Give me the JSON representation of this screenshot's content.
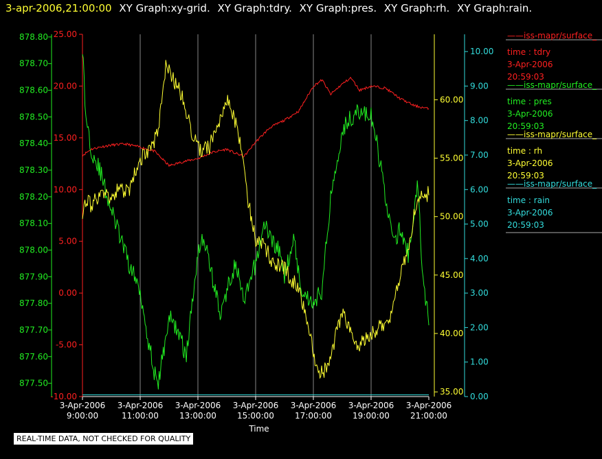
{
  "header": {
    "timestamp": "3-apr-2006,21:00:00",
    "titles": [
      "XY Graph:xy-grid.",
      "XY Graph:tdry.",
      "XY Graph:pres.",
      "XY Graph:rh.",
      "XY Graph:rain."
    ]
  },
  "footer": {
    "note": "REAL-TIME DATA, NOT CHECKED FOR QUALITY"
  },
  "colors": {
    "tdry": "#ff2020",
    "pres": "#22ee22",
    "rh": "#ffff33",
    "rain": "#33dddd",
    "grid": "#888888",
    "background": "#000000"
  },
  "chart_data": {
    "type": "line",
    "xlabel": "Time",
    "x_ticks": [
      {
        "date": "3-Apr-2006",
        "time": "9:00:00"
      },
      {
        "date": "3-Apr-2006",
        "time": "11:00:00"
      },
      {
        "date": "3-Apr-2006",
        "time": "13:00:00"
      },
      {
        "date": "3-Apr-2006",
        "time": "15:00:00"
      },
      {
        "date": "3-Apr-2006",
        "time": "17:00:00"
      },
      {
        "date": "3-Apr-2006",
        "time": "19:00:00"
      },
      {
        "date": "3-Apr-2006",
        "time": "21:00:00"
      }
    ],
    "x_range_hours": [
      9,
      21
    ],
    "grid": true,
    "legend_position": "right",
    "axes": {
      "pres": {
        "side": "left-outer",
        "range": [
          877.45,
          878.81
        ],
        "ticks": [
          "878.80",
          "878.70",
          "878.60",
          "878.50",
          "878.40",
          "878.30",
          "878.20",
          "878.10",
          "878.00",
          "877.90",
          "877.80",
          "877.70",
          "877.60",
          "877.50"
        ]
      },
      "tdry": {
        "side": "left-inner",
        "range": [
          -10,
          25
        ],
        "ticks": [
          "25.00",
          "20.00",
          "15.00",
          "10.00",
          "5.00",
          "0.00",
          "-5.00",
          "-10.00"
        ]
      },
      "rh": {
        "side": "right-inner",
        "range": [
          34.6,
          65.6
        ],
        "ticks": [
          "60.00",
          "55.00",
          "50.00",
          "45.00",
          "40.00",
          "35.00"
        ]
      },
      "rain": {
        "side": "right-outer",
        "range": [
          0,
          10.5
        ],
        "ticks": [
          "10.00",
          "9.00",
          "8.00",
          "7.00",
          "6.00",
          "5.00",
          "4.00",
          "3.00",
          "2.00",
          "1.00",
          "0.00"
        ]
      }
    },
    "series": [
      {
        "name": "tdry",
        "legend_source": "iss-mapr/surface_",
        "legend_line1": "time : tdry",
        "legend_date": "3-Apr-2006",
        "legend_time": "20:59:03",
        "x": [
          9.0,
          9.3,
          9.6,
          10.0,
          10.5,
          11.0,
          11.5,
          12.0,
          12.5,
          13.0,
          13.5,
          14.0,
          14.3,
          14.6,
          15.0,
          15.5,
          16.0,
          16.5,
          17.0,
          17.3,
          17.6,
          18.0,
          18.3,
          18.6,
          19.0,
          19.5,
          20.0,
          20.5,
          21.0
        ],
        "values": [
          13.3,
          13.9,
          14.1,
          14.3,
          14.4,
          14.1,
          13.7,
          12.3,
          12.7,
          13.0,
          13.6,
          13.9,
          13.5,
          13.2,
          14.6,
          16.0,
          16.7,
          17.6,
          20.0,
          20.6,
          19.2,
          20.2,
          20.8,
          19.6,
          20.0,
          19.8,
          18.8,
          18.1,
          17.8
        ]
      },
      {
        "name": "pres",
        "legend_source": "iss-mapr/surface_",
        "legend_line1": "time : pres",
        "legend_date": "3-Apr-2006",
        "legend_time": "20:59:03",
        "x": [
          9.0,
          9.1,
          9.3,
          9.6,
          10.0,
          10.3,
          10.6,
          11.0,
          11.3,
          11.6,
          12.0,
          12.3,
          12.6,
          13.0,
          13.2,
          13.5,
          13.8,
          14.0,
          14.3,
          14.6,
          15.0,
          15.3,
          15.5,
          15.8,
          16.0,
          16.3,
          16.6,
          17.0,
          17.3,
          17.6,
          18.0,
          18.3,
          18.6,
          19.0,
          19.2,
          19.5,
          19.8,
          20.0,
          20.3,
          20.6,
          20.8,
          21.0
        ],
        "values": [
          878.77,
          878.52,
          878.38,
          878.3,
          878.15,
          878.05,
          877.95,
          877.85,
          877.65,
          877.48,
          877.75,
          877.7,
          877.6,
          878.0,
          878.05,
          877.9,
          877.75,
          877.85,
          877.95,
          877.8,
          877.95,
          878.1,
          878.05,
          878.0,
          877.9,
          878.05,
          877.85,
          877.8,
          877.85,
          878.2,
          878.45,
          878.5,
          878.52,
          878.5,
          878.4,
          878.2,
          878.02,
          878.08,
          877.98,
          878.25,
          877.9,
          877.72
        ]
      },
      {
        "name": "rh",
        "legend_source": "iss-mapr/surface_",
        "legend_line1": "time : rh",
        "legend_date": "3-Apr-2006",
        "legend_time": "20:59:03",
        "x": [
          9.0,
          9.1,
          9.3,
          9.6,
          10.0,
          10.3,
          10.6,
          11.0,
          11.3,
          11.6,
          11.9,
          12.2,
          12.5,
          12.7,
          12.9,
          13.1,
          13.4,
          13.7,
          14.0,
          14.2,
          14.5,
          14.7,
          15.0,
          15.3,
          15.6,
          16.0,
          16.3,
          16.6,
          17.0,
          17.2,
          17.5,
          17.8,
          18.0,
          18.3,
          18.6,
          19.0,
          19.3,
          19.6,
          20.0,
          20.3,
          20.6,
          21.0
        ],
        "values": [
          50.5,
          51.5,
          51.0,
          52.0,
          51.5,
          52.5,
          52.0,
          55.0,
          55.5,
          57.0,
          63.0,
          61.5,
          60.0,
          58.0,
          56.5,
          55.5,
          56.0,
          58.0,
          60.0,
          59.0,
          56.0,
          52.0,
          48.0,
          47.5,
          46.0,
          45.5,
          44.5,
          43.0,
          38.5,
          36.5,
          37.0,
          40.0,
          42.0,
          40.0,
          39.0,
          40.0,
          40.5,
          41.0,
          45.0,
          47.5,
          51.5,
          52.0
        ]
      },
      {
        "name": "rain",
        "legend_source": "iss-mapr/surface_",
        "legend_line1": "time : rain",
        "legend_date": "3-Apr-2006",
        "legend_time": "20:59:03",
        "x": [
          9.0,
          21.0
        ],
        "values": [
          0.05,
          0.05
        ]
      }
    ]
  }
}
